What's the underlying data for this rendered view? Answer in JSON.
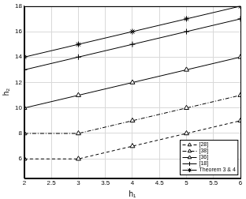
{
  "chart_data": {
    "type": "line",
    "x_label": "h₁",
    "y_label": "h₂",
    "xlim": [
      2,
      6
    ],
    "xticks": [
      2,
      2.5,
      3,
      3.5,
      4,
      4.5,
      5,
      5.5,
      6
    ],
    "ylim": [
      4.5,
      18
    ],
    "yticks": [
      6,
      8,
      10,
      12,
      14,
      16,
      18
    ],
    "grid": true,
    "legend": "bottom-right",
    "x": [
      2,
      3,
      4,
      5,
      6
    ],
    "series": [
      {
        "name": "[28]",
        "color": "#000000",
        "marker": "triangle",
        "line_style": "dashed",
        "values": [
          6,
          6,
          7,
          8,
          9
        ]
      },
      {
        "name": "[38]",
        "color": "#000000",
        "marker": "triangle",
        "line_style": "dashdot",
        "values": [
          8,
          8,
          9,
          10,
          11
        ]
      },
      {
        "name": "[36]",
        "color": "#000000",
        "marker": "triangle",
        "line_style": "solid",
        "values": [
          10,
          11,
          12,
          13,
          14
        ]
      },
      {
        "name": "[18]",
        "color": "#000000",
        "marker": "plus",
        "line_style": "solid",
        "values": [
          13,
          14,
          15,
          16,
          17
        ]
      },
      {
        "name": "Theorem 3 & 4",
        "color": "#000000",
        "marker": "star",
        "line_style": "solid",
        "values": [
          14,
          15,
          16,
          17,
          18
        ]
      }
    ]
  }
}
